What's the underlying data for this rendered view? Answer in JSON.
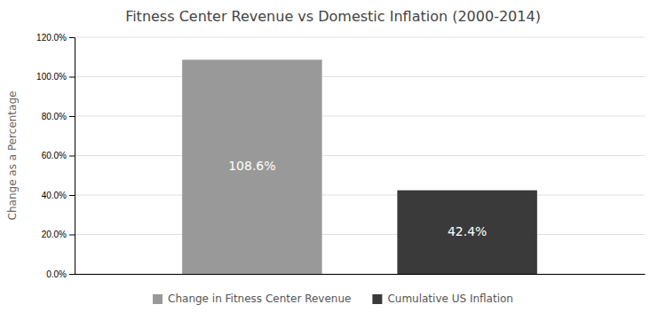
{
  "chart_data": {
    "type": "bar",
    "title": "Fitness Center Revenue vs Domestic Inflation (2000-2014)",
    "ylabel": "Change as a Percentage",
    "categories": [
      "Change in Fitness Center Revenue",
      "Cumulative US Inflation"
    ],
    "values": [
      108.6,
      42.4
    ],
    "value_labels": [
      "108.6%",
      "42.4%"
    ],
    "data_labels": true,
    "colors": [
      "#999999",
      "#3a3a3a"
    ],
    "ylim": [
      0,
      120
    ],
    "yticks": [
      {
        "value": 0,
        "label": "0.0%"
      },
      {
        "value": 20,
        "label": "20.0%"
      },
      {
        "value": 40,
        "label": "40.0%"
      },
      {
        "value": 60,
        "label": "60.0%"
      },
      {
        "value": 80,
        "label": "80.0%"
      },
      {
        "value": 100,
        "label": "100.0%"
      },
      {
        "value": 120,
        "label": "120.0%"
      }
    ],
    "grid": true,
    "legend": "bottom",
    "tick_labels": "y"
  }
}
